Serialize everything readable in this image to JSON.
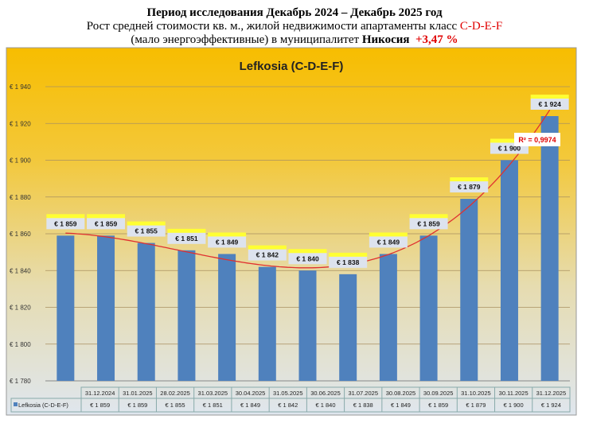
{
  "header": {
    "line1": "Период исследования Декабрь 2024 – Декабрь 2025 год",
    "line2_prefix": "Рост средней стоимости кв. м., жилой недвижимости апартаменты класс ",
    "line2_class": "C-D-E-F",
    "line3_prefix": "(мало энергоэффективные) в муниципалитет ",
    "line3_city": "Никосия",
    "line3_change": "+3,47 %"
  },
  "colors": {
    "bar": "#4f81bd",
    "trend": "#e03030",
    "label_highlight": "#ffff33",
    "red": "#e00000"
  },
  "chart_data": {
    "type": "bar",
    "title": "Lefkosia (C-D-E-F)",
    "series_name": "Lefkosia (C-D-E-F)",
    "categories": [
      "31.12.2024",
      "31.01.2025",
      "28.02.2025",
      "31.03.2025",
      "30.04.2025",
      "31.05.2025",
      "30.06.2025",
      "31.07.2025",
      "30.08.2025",
      "30.09.2025",
      "31.10.2025",
      "30.11.2025",
      "31.12.2025"
    ],
    "values": [
      1859,
      1859,
      1855,
      1851,
      1849,
      1842,
      1840,
      1838,
      1849,
      1859,
      1879,
      1900,
      1924
    ],
    "value_labels": [
      "€ 1 859",
      "€ 1 859",
      "€ 1 855",
      "€ 1 851",
      "€ 1 849",
      "€ 1 842",
      "€ 1 840",
      "€ 1 838",
      "€ 1 849",
      "€ 1 859",
      "€ 1 879",
      "€ 1 900",
      "€ 1 924"
    ],
    "ylim": [
      1780,
      1940
    ],
    "yticks": [
      1780,
      1800,
      1820,
      1840,
      1860,
      1880,
      1900,
      1920,
      1940
    ],
    "ytick_labels": [
      "€ 1 780",
      "€ 1 800",
      "€ 1 820",
      "€ 1 840",
      "€ 1 860",
      "€ 1 880",
      "€ 1 900",
      "€ 1 920",
      "€ 1 940"
    ],
    "trendline": {
      "type": "polynomial",
      "r2_label": "R² = 0,9974"
    },
    "grid": true,
    "legend": "data-table"
  }
}
